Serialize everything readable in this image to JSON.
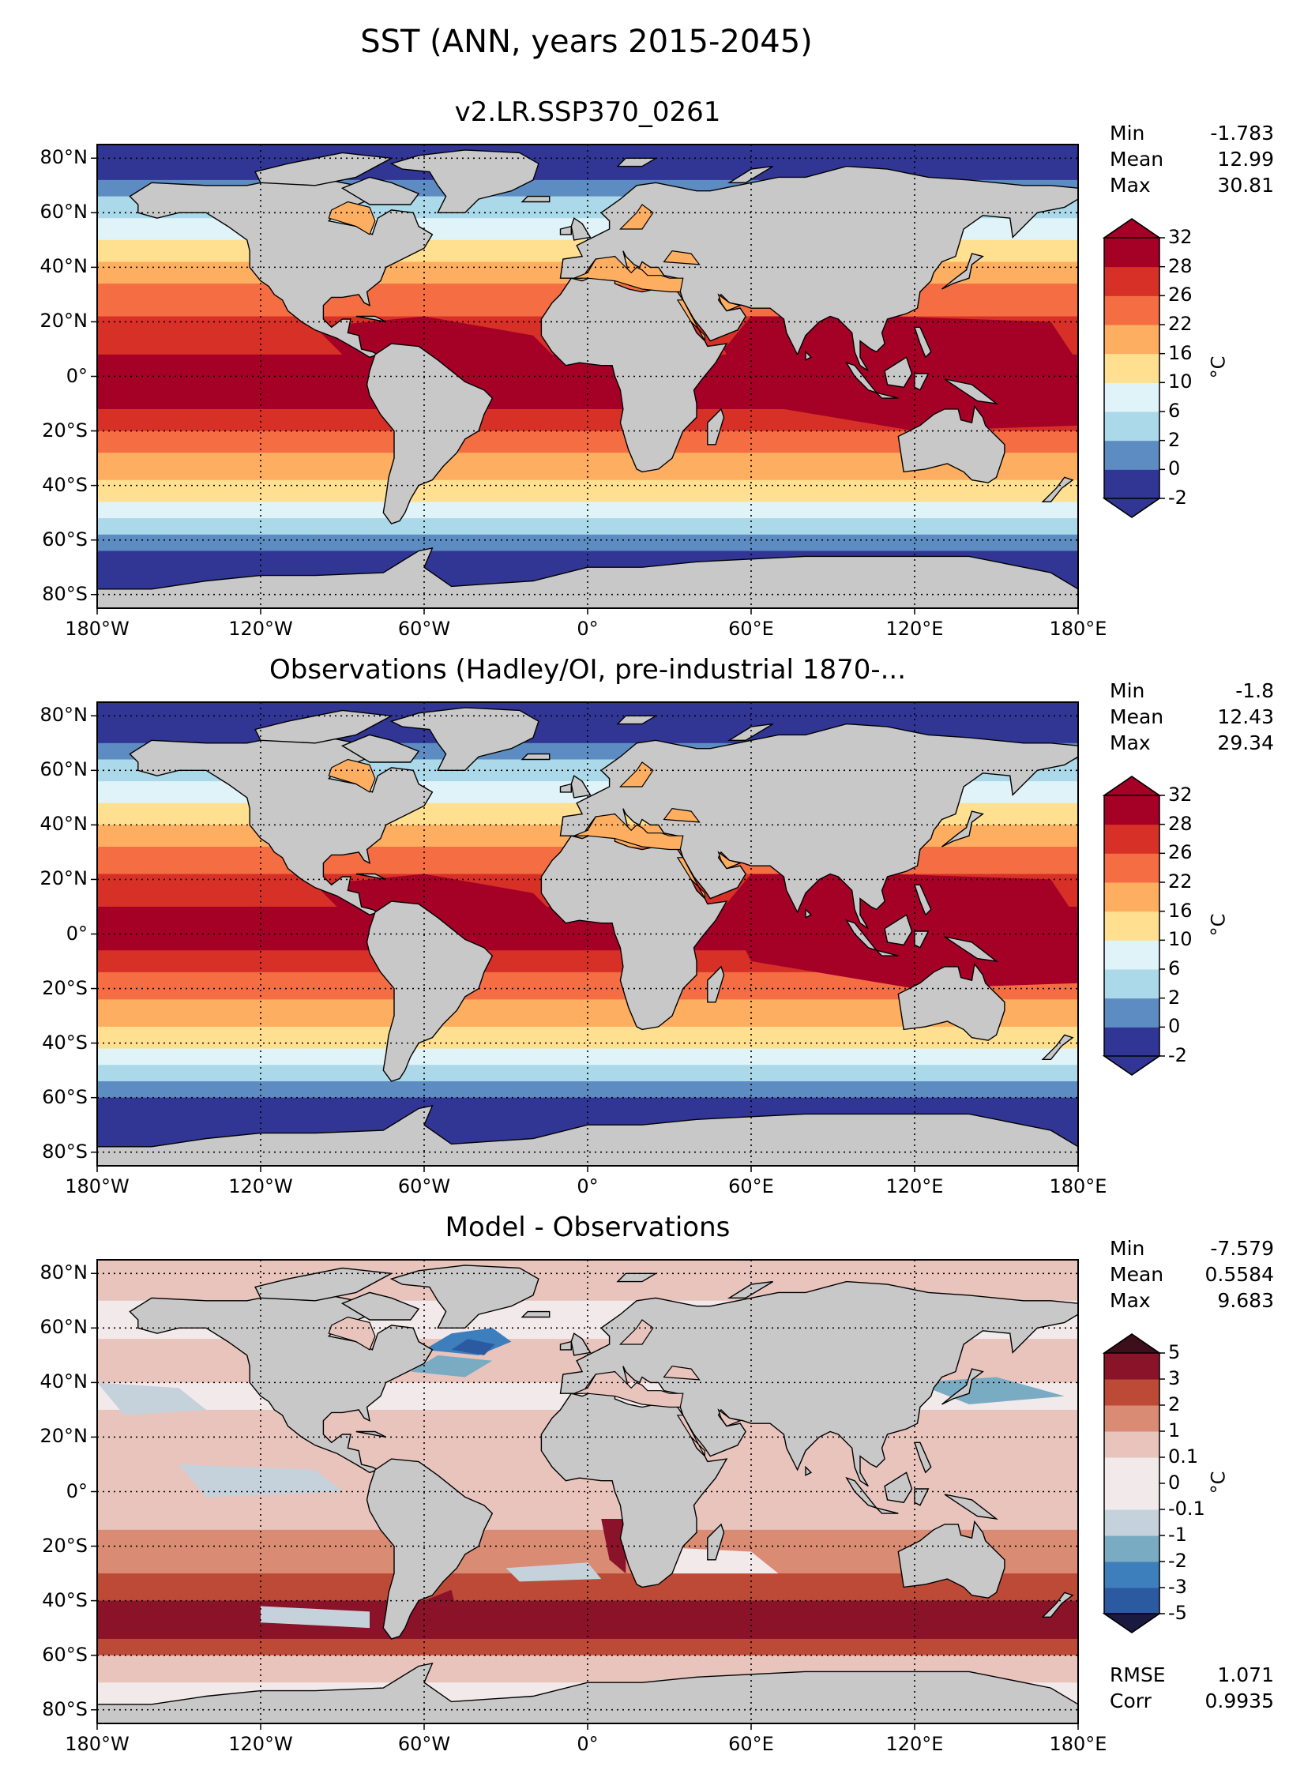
{
  "figure": {
    "title": "SST (ANN, years 2015-2045)"
  },
  "panels": [
    {
      "title": "v2.LR.SSP370_0261",
      "stats": [
        {
          "label": "Min",
          "value": "-1.783"
        },
        {
          "label": "Mean",
          "value": "12.99"
        },
        {
          "label": "Max",
          "value": "30.81"
        }
      ],
      "colorbar": {
        "levels": [
          "-2",
          "0",
          "2",
          "6",
          "10",
          "16",
          "22",
          "26",
          "28",
          "32"
        ],
        "unit": "°C",
        "colors": [
          "#313695",
          "#5d8cc2",
          "#abd9e9",
          "#e0f3f8",
          "#fee090",
          "#fdae61",
          "#f46d43",
          "#d73027",
          "#a50026"
        ],
        "under": "#313695",
        "over": "#a50026"
      },
      "field": "model"
    },
    {
      "title": "Observations (Hadley/OI, pre-industrial 1870-...",
      "stats": [
        {
          "label": "Min",
          "value": "-1.8"
        },
        {
          "label": "Mean",
          "value": "12.43"
        },
        {
          "label": "Max",
          "value": "29.34"
        }
      ],
      "colorbar": {
        "levels": [
          "-2",
          "0",
          "2",
          "6",
          "10",
          "16",
          "22",
          "26",
          "28",
          "32"
        ],
        "unit": "°C",
        "colors": [
          "#313695",
          "#5d8cc2",
          "#abd9e9",
          "#e0f3f8",
          "#fee090",
          "#fdae61",
          "#f46d43",
          "#d73027",
          "#a50026"
        ],
        "under": "#313695",
        "over": "#a50026"
      },
      "field": "obs"
    },
    {
      "title": "Model - Observations",
      "stats": [
        {
          "label": "Min",
          "value": "-7.579"
        },
        {
          "label": "Mean",
          "value": "0.5584"
        },
        {
          "label": "Max",
          "value": "9.683"
        }
      ],
      "extra_stats": [
        {
          "label": "RMSE",
          "value": "1.071"
        },
        {
          "label": "Corr",
          "value": "0.9935"
        }
      ],
      "colorbar": {
        "levels": [
          "-5",
          "-3",
          "-2",
          "-1",
          "-0.1",
          "0",
          "0.1",
          "1",
          "2",
          "3",
          "5"
        ],
        "unit": "°C",
        "colors": [
          "#2c5aa0",
          "#3d7fbd",
          "#79abc3",
          "#c5d2dc",
          "#f2e9ea",
          "#f2e9ea",
          "#e8c4bd",
          "#d98b74",
          "#bd4a36",
          "#8b1329"
        ],
        "under": "#1a1a40",
        "over": "#3d0f1a"
      },
      "field": "diff"
    }
  ],
  "axes": {
    "lat_ticks": [
      "80°N",
      "60°N",
      "40°N",
      "20°N",
      "0°",
      "20°S",
      "40°S",
      "60°S",
      "80°S"
    ],
    "lon_ticks": [
      "180°W",
      "120°W",
      "60°W",
      "0°",
      "60°E",
      "120°E",
      "180°E"
    ]
  },
  "chart_data": [
    {
      "type": "heatmap",
      "title": "v2.LR.SSP370_0261",
      "variable": "SST",
      "unit": "°C",
      "x_range": [
        -180,
        180
      ],
      "y_range": [
        -90,
        90
      ],
      "xticks": [
        -180,
        -120,
        -60,
        0,
        60,
        120,
        180
      ],
      "yticks": [
        80,
        60,
        40,
        20,
        0,
        -20,
        -40,
        -60,
        -80
      ],
      "min": -1.783,
      "mean": 12.99,
      "max": 30.81,
      "levels": [
        -2,
        0,
        2,
        6,
        10,
        16,
        22,
        26,
        28,
        32
      ]
    },
    {
      "type": "heatmap",
      "title": "Observations (Hadley/OI, pre-industrial 1870-...",
      "variable": "SST",
      "unit": "°C",
      "x_range": [
        -180,
        180
      ],
      "y_range": [
        -90,
        90
      ],
      "min": -1.8,
      "mean": 12.43,
      "max": 29.34,
      "levels": [
        -2,
        0,
        2,
        6,
        10,
        16,
        22,
        26,
        28,
        32
      ]
    },
    {
      "type": "heatmap",
      "title": "Model - Observations",
      "variable": "SST difference",
      "unit": "°C",
      "x_range": [
        -180,
        180
      ],
      "y_range": [
        -90,
        90
      ],
      "min": -7.579,
      "mean": 0.5584,
      "max": 9.683,
      "rmse": 1.071,
      "corr": 0.9935,
      "levels": [
        -5,
        -3,
        -2,
        -1,
        -0.1,
        0,
        0.1,
        1,
        2,
        3,
        5
      ]
    }
  ]
}
